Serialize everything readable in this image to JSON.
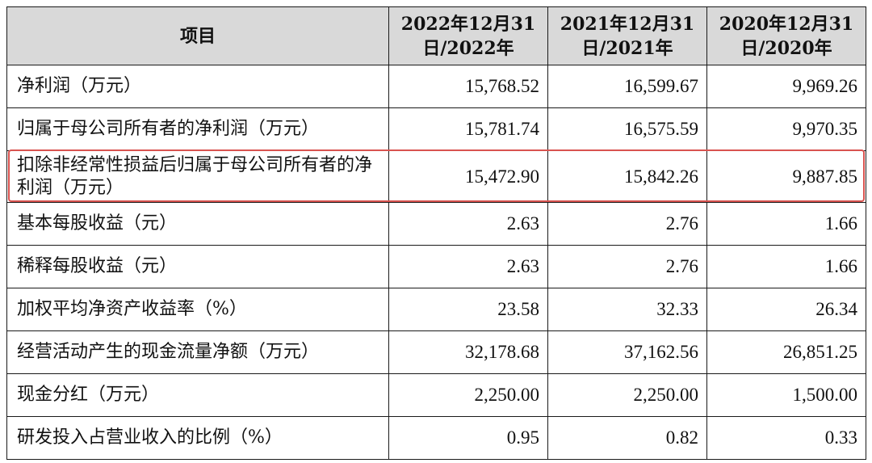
{
  "table": {
    "headers": [
      {
        "line1": "项目",
        "line2": ""
      },
      {
        "line1": "2022年12月31",
        "line2": "日/2022年"
      },
      {
        "line1": "2021年12月31",
        "line2": "日/2021年"
      },
      {
        "line1": "2020年12月31",
        "line2": "日/2020年"
      }
    ],
    "rows": [
      {
        "label": "净利润（万元）",
        "values": [
          "15,768.52",
          "16,599.67",
          "9,969.26"
        ]
      },
      {
        "label": "归属于母公司所有者的净利润（万元）",
        "values": [
          "15,781.74",
          "16,575.59",
          "9,970.35"
        ]
      },
      {
        "label": "扣除非经常性损益后归属于母公司所有者的净利润（万元）",
        "values": [
          "15,472.90",
          "15,842.26",
          "9,887.85"
        ]
      },
      {
        "label": "基本每股收益（元）",
        "values": [
          "2.63",
          "2.76",
          "1.66"
        ]
      },
      {
        "label": "稀释每股收益（元）",
        "values": [
          "2.63",
          "2.76",
          "1.66"
        ]
      },
      {
        "label": "加权平均净资产收益率（%）",
        "values": [
          "23.58",
          "32.33",
          "26.34"
        ]
      },
      {
        "label": "经营活动产生的现金流量净额（万元）",
        "values": [
          "32,178.68",
          "37,162.56",
          "26,851.25"
        ]
      },
      {
        "label": "现金分红（万元）",
        "values": [
          "2,250.00",
          "2,250.00",
          "1,500.00"
        ]
      },
      {
        "label": "研发投入占营业收入的比例（%）",
        "values": [
          "0.95",
          "0.82",
          "0.33"
        ]
      }
    ]
  },
  "highlight": {
    "row_index": 2,
    "color": "#d9534f"
  }
}
